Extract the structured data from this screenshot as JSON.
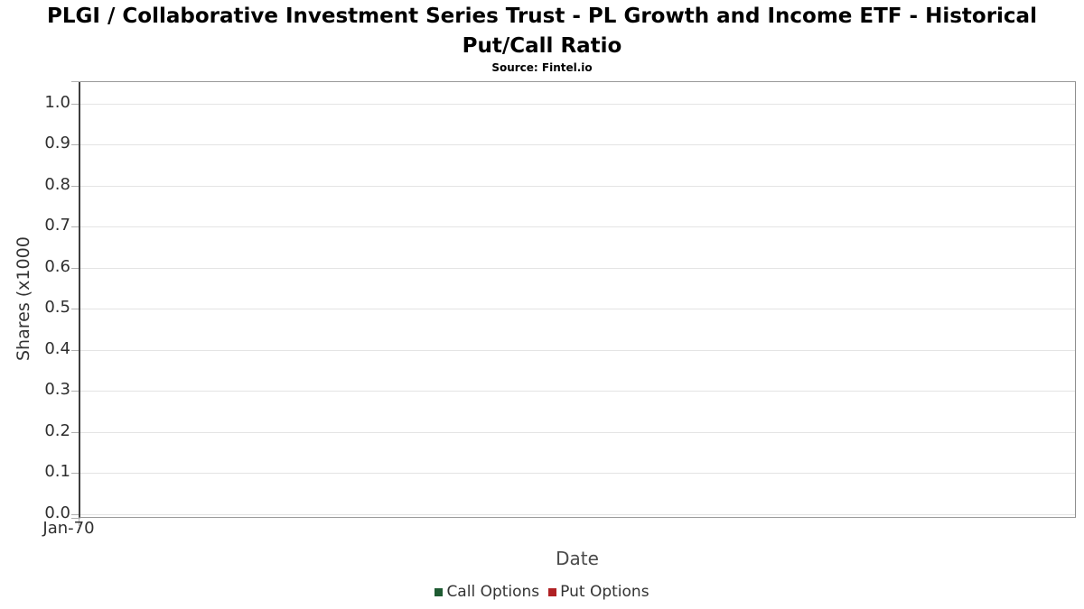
{
  "title": "PLGI / Collaborative Investment Series Trust - PL Growth and Income ETF - Historical Put/Call Ratio",
  "subtitle": "Source: Fintel.io",
  "chart_data": {
    "type": "bar",
    "title": "PLGI / Collaborative Investment Series Trust - PL Growth and Income ETF - Historical Put/Call Ratio",
    "subtitle": "Source: Fintel.io",
    "xlabel": "Date",
    "ylabel": "Shares (x1000",
    "ylim": [
      0.0,
      1.05
    ],
    "y_ticks": [
      "0.0",
      "0.1",
      "0.2",
      "0.3",
      "0.4",
      "0.5",
      "0.6",
      "0.7",
      "0.8",
      "0.9",
      "1.0"
    ],
    "x_ticks": [
      "Jan-70"
    ],
    "grid": "horizontal",
    "legend_position": "bottom-center",
    "categories": [],
    "series": [
      {
        "name": "Call Options",
        "color": "#1e5b32",
        "values": []
      },
      {
        "name": "Put Options",
        "color": "#b02124",
        "values": []
      }
    ],
    "axis_color": "#3e3e3e",
    "border_color": "#9a9a9a",
    "grid_color": "#e4e4e4",
    "tick_color": "#b0b0b0",
    "tick_label_color": "#2f2f2f"
  }
}
